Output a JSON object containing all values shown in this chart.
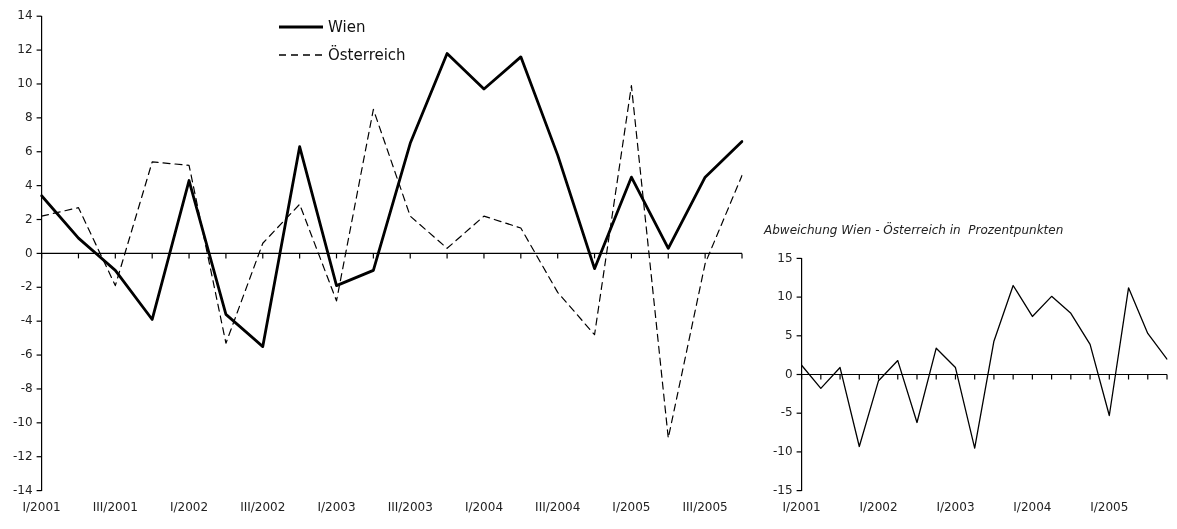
{
  "chart_data": [
    {
      "type": "line",
      "categories": [
        "I/2001",
        null,
        "III/2001",
        null,
        "I/2002",
        null,
        "III/2002",
        null,
        "I/2003",
        null,
        "III/2003",
        null,
        "I/2004",
        null,
        "III/2004",
        null,
        "I/2005",
        null,
        "III/2005",
        null
      ],
      "series": [
        {
          "name": "Wien",
          "color": "#000000",
          "line_style": "solid",
          "values": [
            3.4,
            0.9,
            -1,
            -3.9,
            4.3,
            -3.6,
            -5.5,
            6.3,
            -1.9,
            -1,
            6.5,
            11.8,
            9.7,
            11.6,
            5.8,
            -0.9,
            4.5,
            0.3,
            4.5,
            6.6
          ]
        },
        {
          "name": "Österreich",
          "color": "#000000",
          "line_style": "dashed",
          "values": [
            2.2,
            2.7,
            -1.9,
            5.4,
            5.2,
            -5.3,
            0.6,
            2.9,
            -2.8,
            8.5,
            2.2,
            0.3,
            2.2,
            1.5,
            -2.3,
            -4.8,
            9.9,
            -10.9,
            -0.6,
            4.6
          ]
        }
      ],
      "ref_lines": [
        {
          "axis": "y",
          "value": 0,
          "color": "#000000",
          "line_style": "solid"
        }
      ],
      "ylim": [
        -14,
        14
      ],
      "yticks": [
        -14,
        -12,
        -10,
        -8,
        -6,
        -4,
        -2,
        0,
        2,
        4,
        6,
        8,
        10,
        12,
        14
      ],
      "grid": false,
      "legend": "top",
      "marker": "none"
    },
    {
      "type": "line",
      "title": "Abweichung Wien - Österreich in  Prozentpunkten",
      "categories": [
        "I/2001",
        null,
        null,
        null,
        "I/2002",
        null,
        null,
        null,
        "I/2003",
        null,
        null,
        null,
        "I/2004",
        null,
        null,
        null,
        "I/2005",
        null,
        null,
        null
      ],
      "series": [
        {
          "color": "#000000",
          "line_style": "solid",
          "values": [
            1.2,
            -1.8,
            0.9,
            -9.3,
            -0.8,
            1.8,
            -6.2,
            3.4,
            0.9,
            -9.5,
            4.3,
            11.5,
            7.5,
            10.1,
            7.9,
            3.9,
            -5.3,
            11.2,
            5.3,
            2.0
          ]
        }
      ],
      "ref_lines": [
        {
          "axis": "y",
          "value": 0,
          "color": "#000000",
          "line_style": "solid"
        }
      ],
      "ylim": [
        -15,
        15
      ],
      "yticks": [
        -15,
        -10,
        -5,
        0,
        5,
        10,
        15
      ],
      "grid": false,
      "legend": false,
      "marker": "none"
    }
  ]
}
